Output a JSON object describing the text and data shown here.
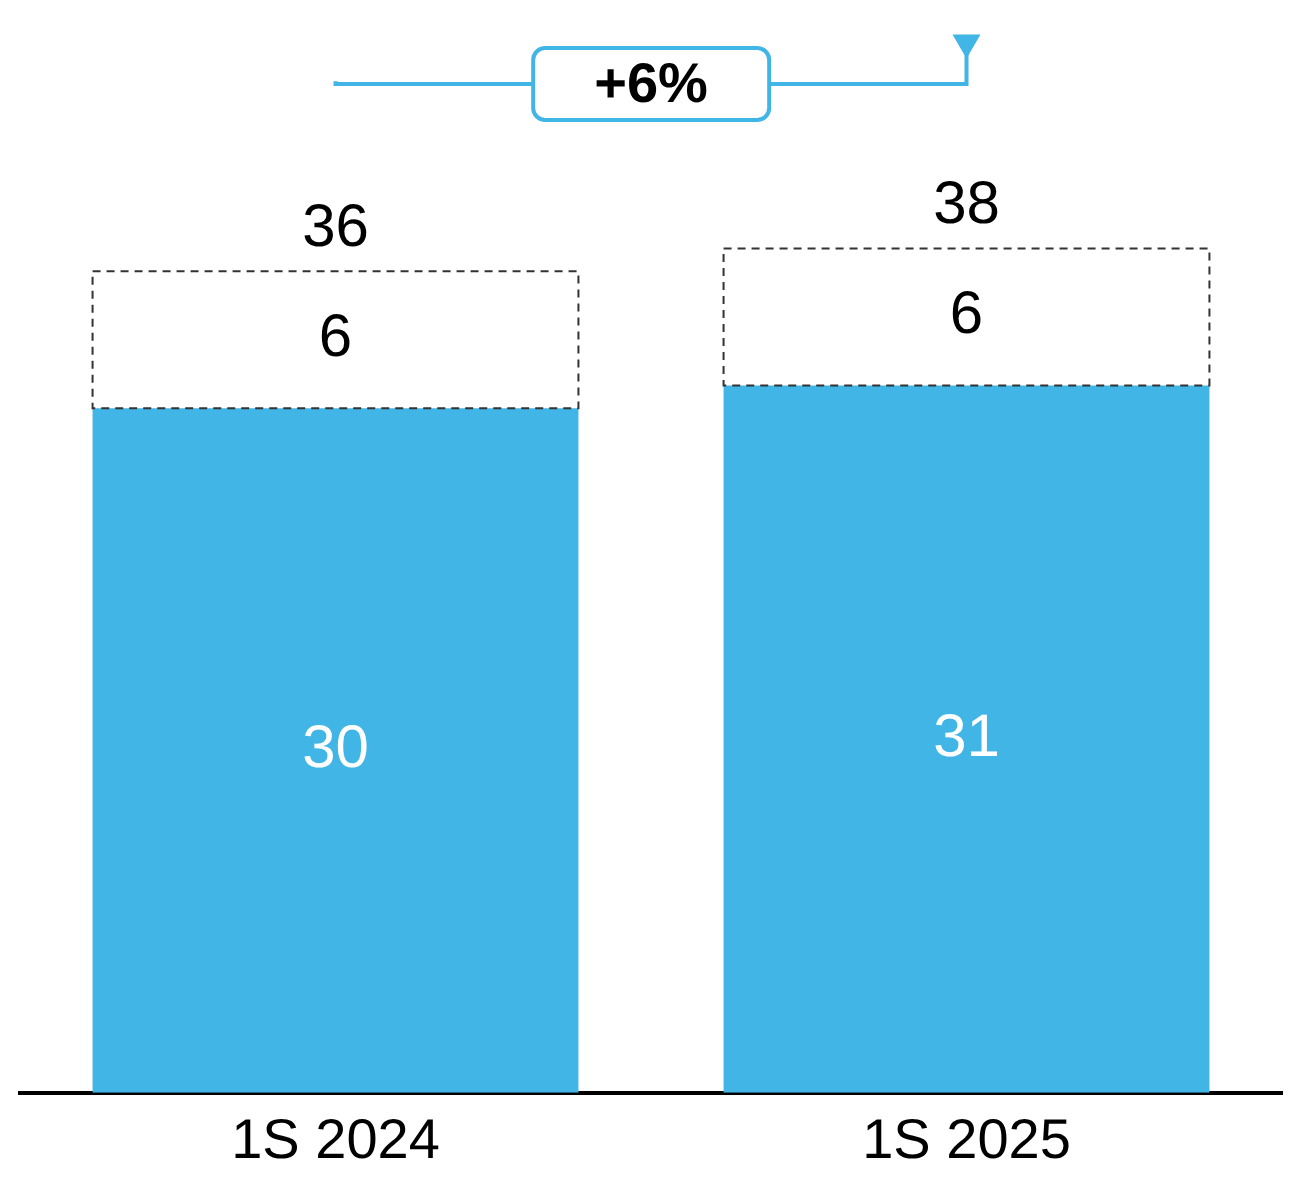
{
  "chart_data": {
    "type": "bar",
    "categories": [
      "1S 2024",
      "1S 2025"
    ],
    "stacked": true,
    "series": [
      {
        "color": "#41b6e6",
        "values": [
          30,
          31
        ]
      },
      {
        "color": "#ffffff",
        "values": [
          6,
          6
        ]
      }
    ],
    "totals": [
      "36",
      "38"
    ],
    "data_labels": true,
    "tick_labels": "x",
    "legend": false,
    "annotations": [
      "+6%"
    ]
  }
}
